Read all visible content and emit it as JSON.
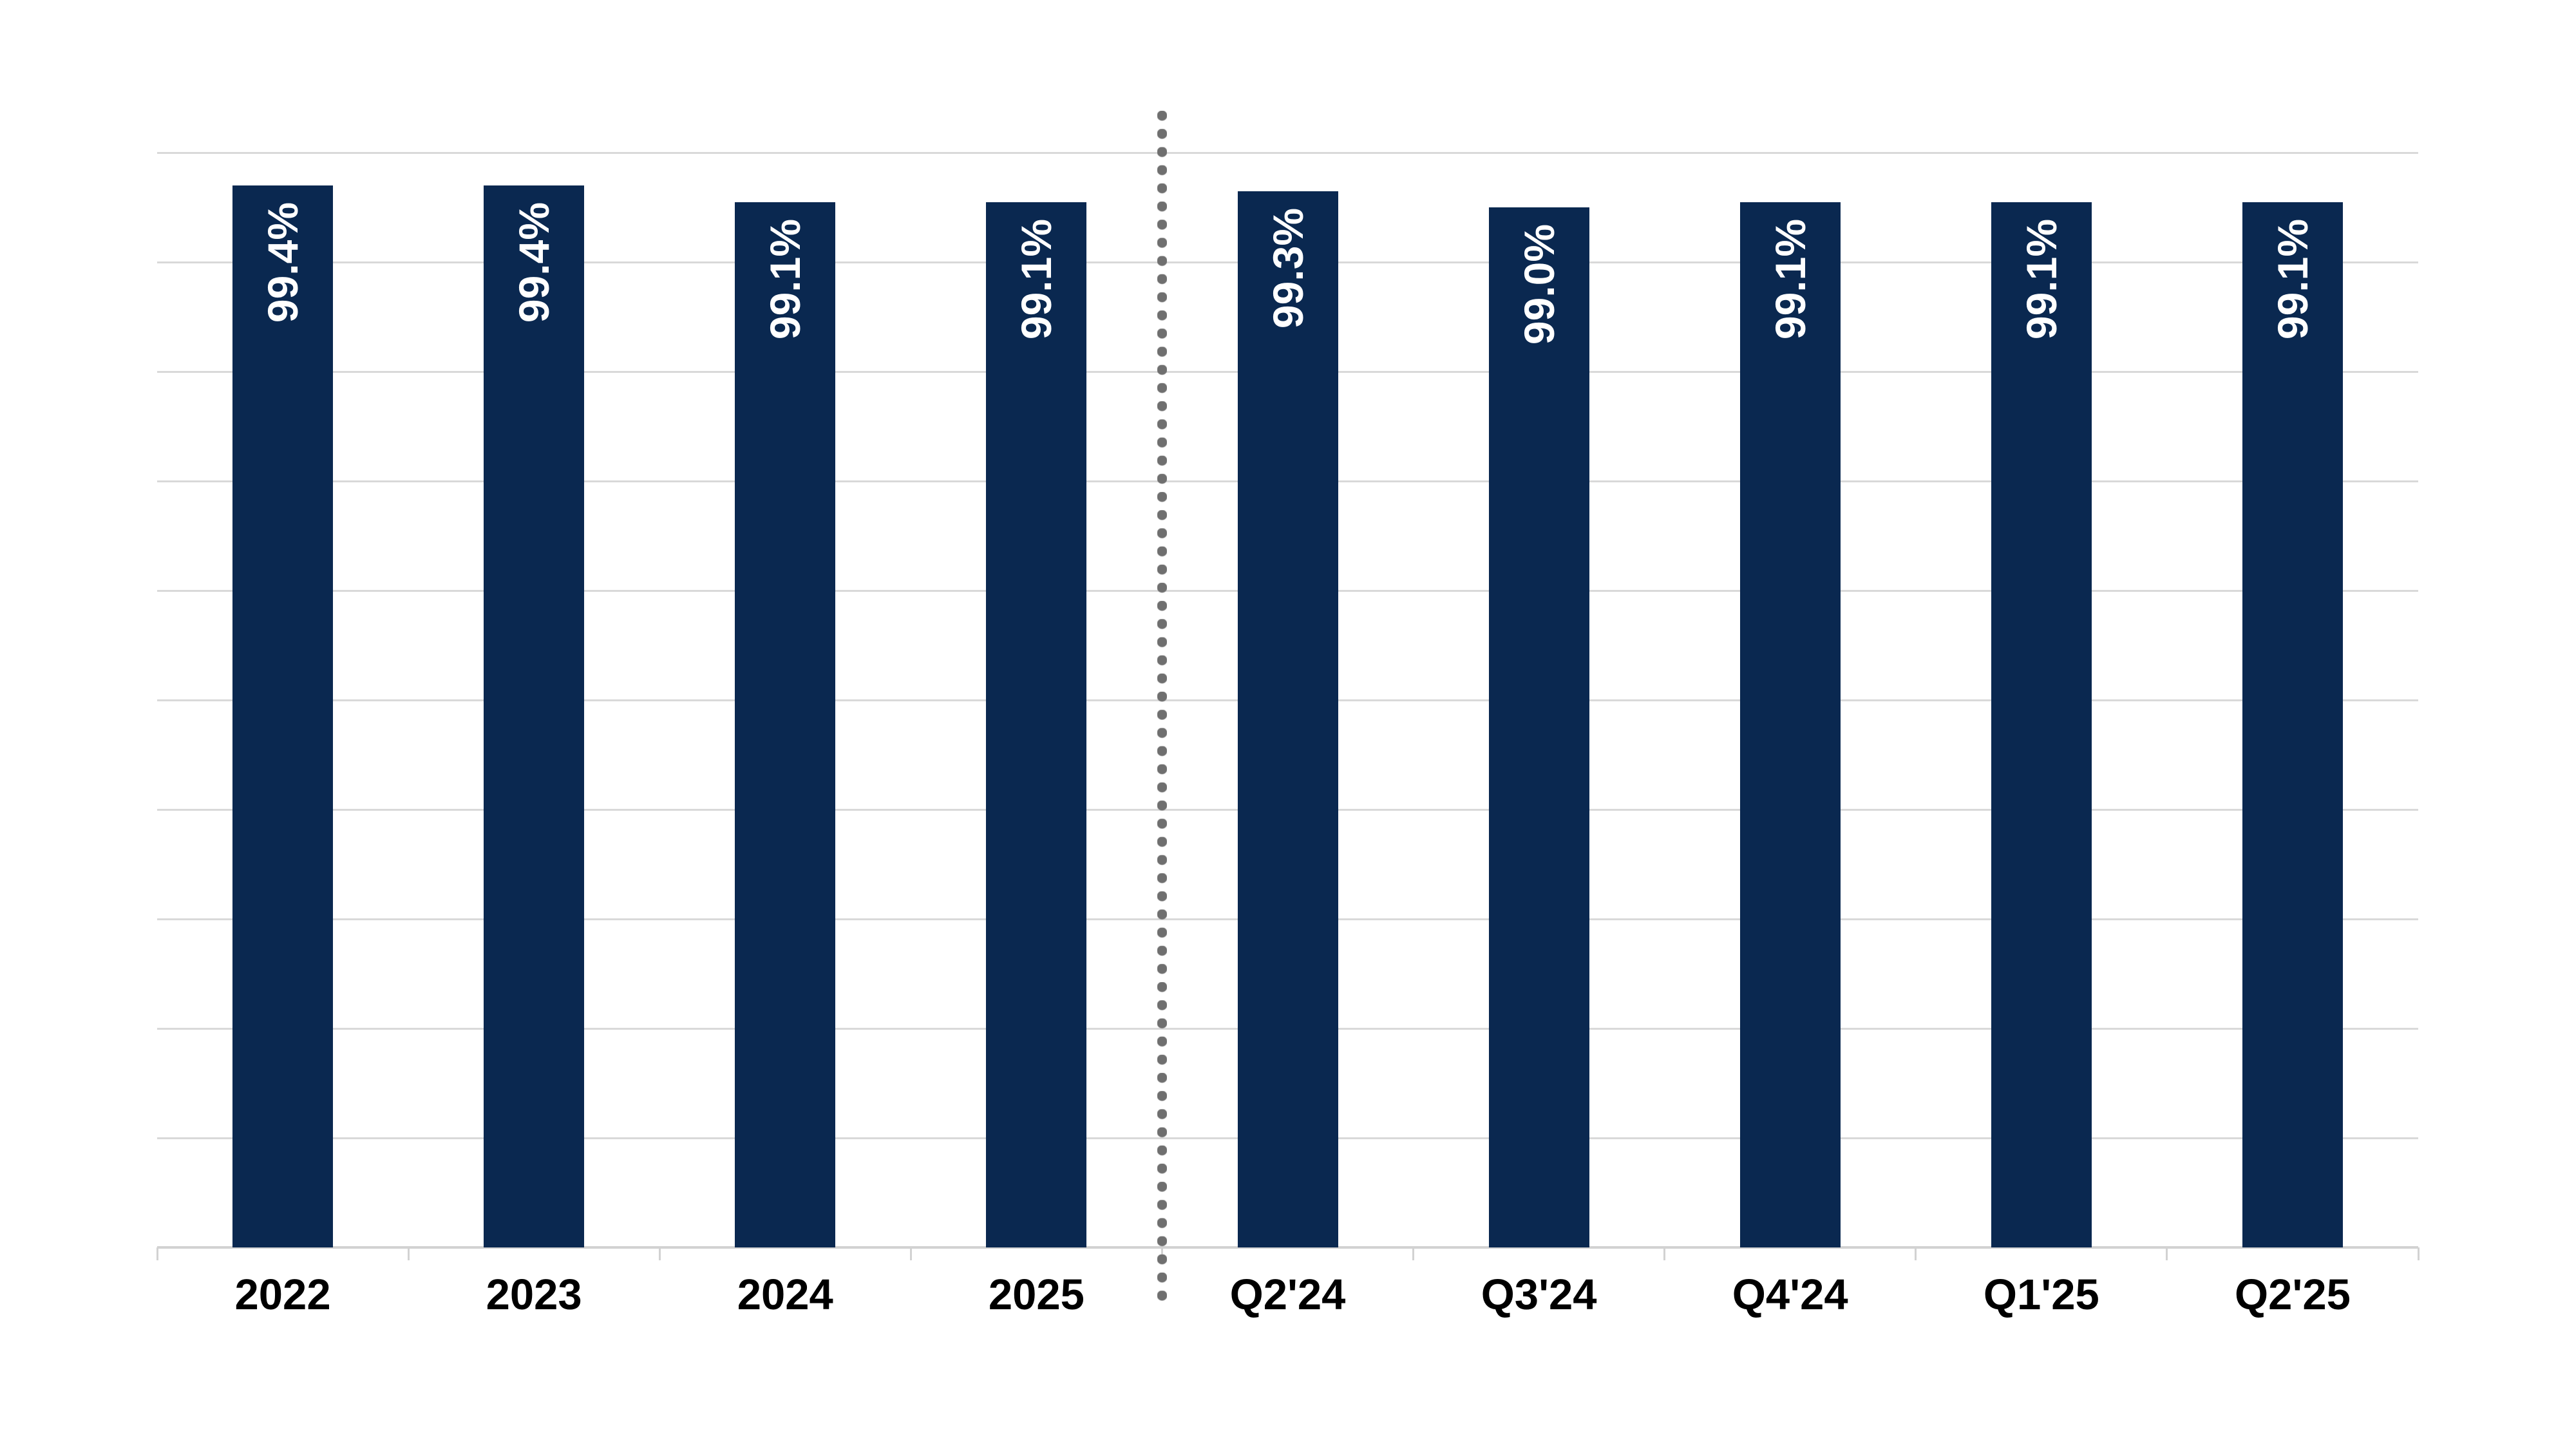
{
  "chart_data": {
    "type": "bar",
    "title": "",
    "xlabel": "",
    "ylabel": "",
    "categories": [
      "2022",
      "2023",
      "2024",
      "2025",
      "Q2'24",
      "Q3'24",
      "Q4'24",
      "Q1'25",
      "Q2'25"
    ],
    "values": [
      99.4,
      99.4,
      99.1,
      99.1,
      99.3,
      99.0,
      99.1,
      99.1,
      99.1
    ],
    "data_labels": [
      "99.4%",
      "99.4%",
      "99.1%",
      "99.1%",
      "99.3%",
      "99.0%",
      "99.1%",
      "99.1%",
      "99.1%"
    ],
    "data_label_rotation_deg": -90,
    "ylim": [
      80,
      100
    ],
    "grid_step": 2,
    "grid": "horizontal",
    "y_axis_tick_labels_visible": false,
    "legend": "none",
    "separator_after_index": 3,
    "groups": {
      "annual": [
        "2022",
        "2023",
        "2024",
        "2025"
      ],
      "quarterly": [
        "Q2'24",
        "Q3'24",
        "Q4'24",
        "Q1'25",
        "Q2'25"
      ]
    },
    "colors": {
      "bar": "#0a2850",
      "data_label": "#ffffff",
      "category_label": "#000000",
      "gridline": "#d9d9d9",
      "axis_line": "#d2d2d2",
      "separator_dot": "#6f6f6f",
      "background": "#ffffff"
    }
  }
}
